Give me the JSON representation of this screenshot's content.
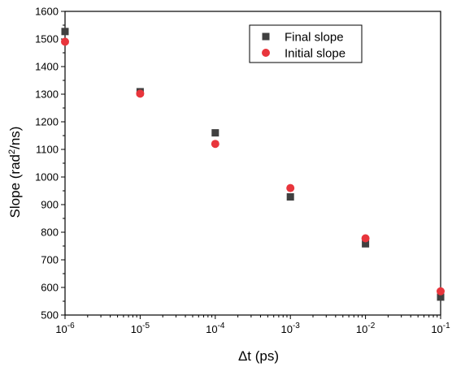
{
  "chart_data": {
    "type": "scatter",
    "xscale": "log",
    "xlim": [
      1e-06,
      0.1
    ],
    "ylim": [
      500,
      1600
    ],
    "y_ticks": [
      500,
      600,
      700,
      800,
      900,
      1000,
      1100,
      1200,
      1300,
      1400,
      1500,
      1600
    ],
    "x_ticks": [
      {
        "value": 1e-06,
        "base": "10",
        "exp": "-6"
      },
      {
        "value": 1e-05,
        "base": "10",
        "exp": "-5"
      },
      {
        "value": 0.0001,
        "base": "10",
        "exp": "-4"
      },
      {
        "value": 0.001,
        "base": "10",
        "exp": "-3"
      },
      {
        "value": 0.01,
        "base": "10",
        "exp": "-2"
      },
      {
        "value": 0.1,
        "base": "10",
        "exp": "-1"
      }
    ],
    "xlabel": "Δt (ps)",
    "ylabel": {
      "prefix": "Slope (rad",
      "sup": "2",
      "suffix": "/ns)"
    },
    "legend_position": "top-right",
    "series": [
      {
        "name": "Final slope",
        "marker": "square",
        "color": "#404040",
        "x": [
          1e-06,
          1e-05,
          0.0001,
          0.001,
          0.01,
          0.1
        ],
        "y": [
          1527,
          1309,
          1160,
          928,
          758,
          565
        ]
      },
      {
        "name": "Initial slope",
        "marker": "circle",
        "color": "#e8353c",
        "x": [
          1e-06,
          1e-05,
          0.0001,
          0.001,
          0.01,
          0.1
        ],
        "y": [
          1490,
          1302,
          1120,
          960,
          778,
          586
        ]
      }
    ]
  }
}
